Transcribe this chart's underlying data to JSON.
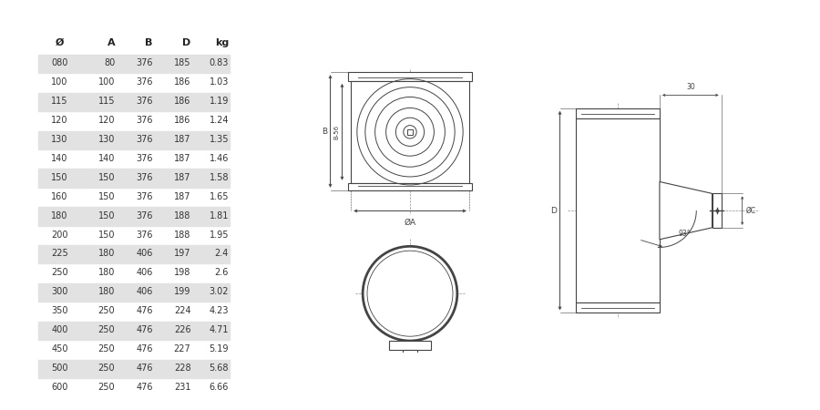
{
  "table_headers": [
    "Ø",
    "A",
    "B",
    "D",
    "kg"
  ],
  "table_rows": [
    [
      "080",
      "80",
      "376",
      "185",
      "0.83"
    ],
    [
      "100",
      "100",
      "376",
      "186",
      "1.03"
    ],
    [
      "115",
      "115",
      "376",
      "186",
      "1.19"
    ],
    [
      "120",
      "120",
      "376",
      "186",
      "1.24"
    ],
    [
      "130",
      "130",
      "376",
      "187",
      "1.35"
    ],
    [
      "140",
      "140",
      "376",
      "187",
      "1.46"
    ],
    [
      "150",
      "150",
      "376",
      "187",
      "1.58"
    ],
    [
      "160",
      "150",
      "376",
      "187",
      "1.65"
    ],
    [
      "180",
      "150",
      "376",
      "188",
      "1.81"
    ],
    [
      "200",
      "150",
      "376",
      "188",
      "1.95"
    ],
    [
      "225",
      "180",
      "406",
      "197",
      "2.4"
    ],
    [
      "250",
      "180",
      "406",
      "198",
      "2.6"
    ],
    [
      "300",
      "180",
      "406",
      "199",
      "3.02"
    ],
    [
      "350",
      "250",
      "476",
      "224",
      "4.23"
    ],
    [
      "400",
      "250",
      "476",
      "226",
      "4.71"
    ],
    [
      "450",
      "250",
      "476",
      "227",
      "5.19"
    ],
    [
      "500",
      "250",
      "476",
      "228",
      "5.68"
    ],
    [
      "600",
      "250",
      "476",
      "231",
      "6.66"
    ]
  ],
  "shaded_rows": [
    0,
    2,
    4,
    6,
    8,
    10,
    12,
    14,
    16
  ],
  "bg_color": "#ffffff",
  "line_color": "#444444",
  "shade_color": "#e2e2e2",
  "font_size": 7.0
}
